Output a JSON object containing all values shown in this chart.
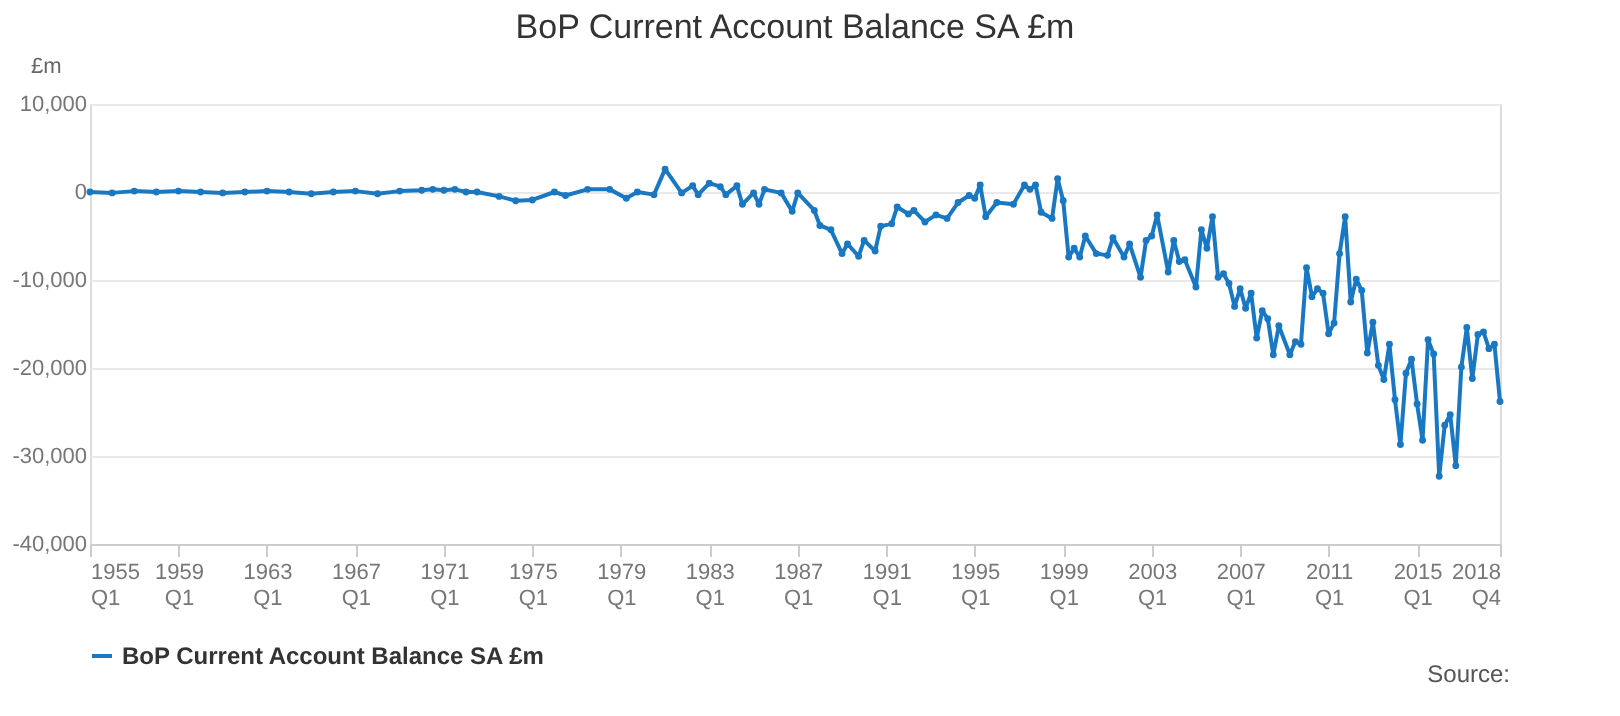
{
  "chart_data": {
    "type": "line",
    "title": "BoP Current Account Balance SA £m",
    "ylabel": "£m",
    "x": [
      "1955-01",
      "1956-01",
      "1957-01",
      "1958-01",
      "1959-01",
      "1960-01",
      "1961-01",
      "1962-01",
      "1963-01",
      "1964-01",
      "1965-01",
      "1966-01",
      "1967-01",
      "1968-01",
      "1969-01",
      "1970-01",
      "1970-07",
      "1971-01",
      "1971-07",
      "1972-01",
      "1972-07",
      "1973-07",
      "1974-04",
      "1975-01",
      "1976-01",
      "1976-07",
      "1977-07",
      "1978-07",
      "1979-04",
      "1979-10",
      "1980-07",
      "1981-01",
      "1981-10",
      "1982-04",
      "1982-07",
      "1983-01",
      "1983-07",
      "1983-10",
      "1984-04",
      "1984-07",
      "1985-01",
      "1985-04",
      "1985-07",
      "1986-04",
      "1986-10",
      "1987-01",
      "1987-10",
      "1988-01",
      "1988-07",
      "1989-01",
      "1989-04",
      "1989-10",
      "1990-01",
      "1990-07",
      "1990-10",
      "1991-04",
      "1991-07",
      "1992-01",
      "1992-04",
      "1992-10",
      "1993-04",
      "1993-10",
      "1994-04",
      "1994-10",
      "1995-01",
      "1995-04",
      "1995-07",
      "1996-01",
      "1996-10",
      "1997-04",
      "1997-07",
      "1997-10",
      "1998-01",
      "1998-07",
      "1998-10",
      "1999-01",
      "1999-04",
      "1999-07",
      "1999-10",
      "2000-01",
      "2000-07",
      "2001-01",
      "2001-04",
      "2001-10",
      "2002-01",
      "2002-07",
      "2002-10",
      "2003-01",
      "2003-04",
      "2003-10",
      "2004-01",
      "2004-04",
      "2004-07",
      "2005-01",
      "2005-04",
      "2005-07",
      "2005-10",
      "2006-01",
      "2006-04",
      "2006-07",
      "2006-10",
      "2007-01",
      "2007-04",
      "2007-07",
      "2007-10",
      "2008-01",
      "2008-04",
      "2008-07",
      "2008-10",
      "2009-04",
      "2009-07",
      "2009-10",
      "2010-01",
      "2010-04",
      "2010-07",
      "2010-10",
      "2011-01",
      "2011-04",
      "2011-07",
      "2011-10",
      "2012-01",
      "2012-04",
      "2012-07",
      "2012-10",
      "2013-01",
      "2013-04",
      "2013-07",
      "2013-10",
      "2014-01",
      "2014-04",
      "2014-07",
      "2014-10",
      "2015-01",
      "2015-04",
      "2015-07",
      "2015-10",
      "2016-01",
      "2016-04",
      "2016-07",
      "2016-10",
      "2017-01",
      "2017-04",
      "2017-07",
      "2017-10",
      "2018-01",
      "2018-04",
      "2018-07",
      "2018-10"
    ],
    "series": [
      {
        "name": "BoP Current Account Balance SA £m",
        "color": "#1a78c2",
        "values": [
          0,
          -100,
          100,
          0,
          100,
          0,
          -100,
          0,
          100,
          0,
          -200,
          0,
          100,
          -200,
          100,
          200,
          300,
          200,
          300,
          0,
          0,
          -500,
          -1000,
          -900,
          0,
          -400,
          300,
          300,
          -700,
          0,
          -300,
          2600,
          -100,
          700,
          -300,
          1000,
          600,
          -300,
          700,
          -1400,
          -100,
          -1400,
          300,
          -100,
          -2200,
          -100,
          -2100,
          -3800,
          -4300,
          -7000,
          -5900,
          -7300,
          -5500,
          -6700,
          -3900,
          -3600,
          -1700,
          -2500,
          -2100,
          -3400,
          -2600,
          -3000,
          -1200,
          -400,
          -700,
          800,
          -2800,
          -1200,
          -1400,
          800,
          300,
          800,
          -2300,
          -3000,
          1500,
          -1000,
          -7400,
          -6400,
          -7400,
          -5000,
          -7000,
          -7200,
          -5200,
          -7400,
          -5900,
          -9700,
          -5500,
          -5000,
          -2600,
          -9100,
          -5500,
          -7900,
          -7700,
          -10800,
          -4300,
          -6400,
          -2800,
          -9700,
          -9300,
          -10400,
          -13000,
          -11000,
          -13200,
          -11500,
          -16600,
          -13500,
          -14400,
          -18500,
          -15200,
          -18500,
          -17000,
          -17300,
          -8600,
          -11900,
          -11000,
          -11500,
          -16100,
          -14900,
          -7000,
          -2800,
          -12500,
          -9900,
          -11200,
          -18300,
          -14800,
          -19700,
          -21300,
          -17300,
          -23600,
          -28700,
          -20600,
          -19000,
          -24100,
          -28200,
          -16800,
          -18400,
          -32300,
          -26500,
          -25300,
          -31100,
          -19900,
          -15400,
          -21200,
          -16200,
          -15900,
          -17800,
          -17300,
          -23800
        ]
      }
    ],
    "xlim": [
      "1955-01",
      "2018-10"
    ],
    "xticks": [
      {
        "value": "1955-01",
        "label": "1955 Q1"
      },
      {
        "value": "1959-01",
        "label": "1959 Q1"
      },
      {
        "value": "1963-01",
        "label": "1963 Q1"
      },
      {
        "value": "1967-01",
        "label": "1967 Q1"
      },
      {
        "value": "1971-01",
        "label": "1971 Q1"
      },
      {
        "value": "1975-01",
        "label": "1975 Q1"
      },
      {
        "value": "1979-01",
        "label": "1979 Q1"
      },
      {
        "value": "1983-01",
        "label": "1983 Q1"
      },
      {
        "value": "1987-01",
        "label": "1987 Q1"
      },
      {
        "value": "1991-01",
        "label": "1991 Q1"
      },
      {
        "value": "1995-01",
        "label": "1995 Q1"
      },
      {
        "value": "1999-01",
        "label": "1999 Q1"
      },
      {
        "value": "2003-01",
        "label": "2003 Q1"
      },
      {
        "value": "2007-01",
        "label": "2007 Q1"
      },
      {
        "value": "2011-01",
        "label": "2011 Q1"
      },
      {
        "value": "2015-01",
        "label": "2015 Q1"
      },
      {
        "value": "2018-10",
        "label": "2018 Q4"
      }
    ],
    "ylim": [
      -40000,
      10000
    ],
    "yticks": [
      {
        "value": -40000,
        "label": "-40,000"
      },
      {
        "value": -30000,
        "label": "-30,000"
      },
      {
        "value": -20000,
        "label": "-20,000"
      },
      {
        "value": -10000,
        "label": "-10,000"
      },
      {
        "value": 0,
        "label": "0"
      },
      {
        "value": 10000,
        "label": "10,000"
      }
    ],
    "grid": "y",
    "legend": "bottom",
    "marker": "circle",
    "line_style": "solid",
    "annotations": [
      "Source:"
    ]
  }
}
